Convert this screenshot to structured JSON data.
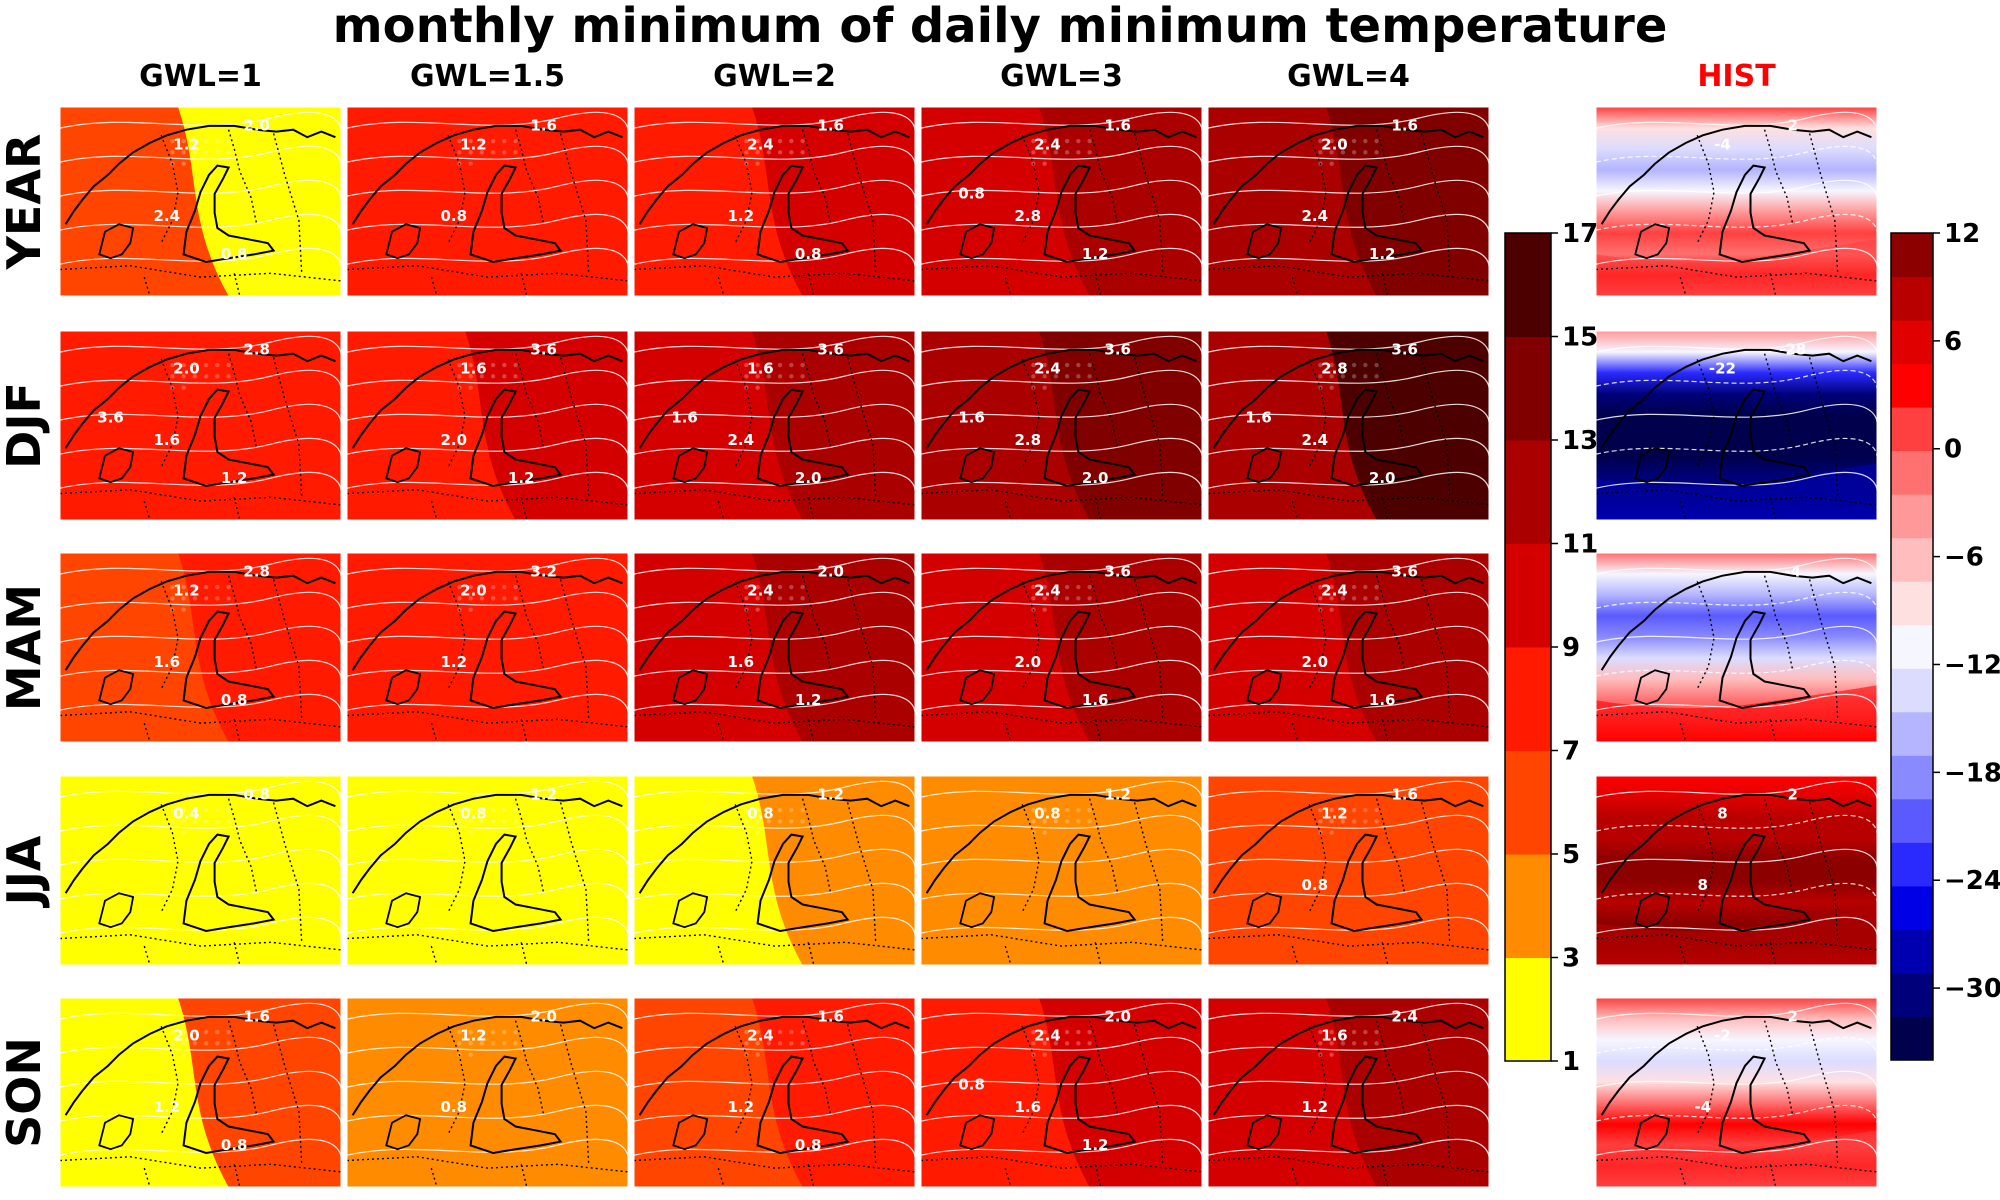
{
  "chart_data": {
    "type": "heatmap",
    "title": "monthly minimum of daily minimum temperature",
    "columns": [
      "GWL=1",
      "GWL=1.5",
      "GWL=2",
      "GWL=3",
      "GWL=4",
      "HIST"
    ],
    "rows": [
      "YEAR",
      "DJF",
      "MAM",
      "JJA",
      "SON"
    ],
    "hist_color": "#ff0000",
    "change_colorbar": {
      "levels": [
        1,
        3,
        5,
        7,
        9,
        11,
        13,
        15,
        17
      ],
      "tick_labels": [
        "1",
        "3",
        "5",
        "7",
        "9",
        "11",
        "13",
        "15",
        "17"
      ],
      "colors": [
        "#ffff00",
        "#ff8c00",
        "#ff4500",
        "#ff1a00",
        "#d40000",
        "#aa0000",
        "#800000",
        "#4d0000"
      ]
    },
    "hist_colorbar": {
      "range": [
        -34,
        12
      ],
      "tick_values": [
        12,
        6,
        0,
        -6,
        -12,
        -18,
        -24,
        -30
      ],
      "tick_labels": [
        "12",
        "6",
        "0",
        "−06",
        "−12",
        "−18",
        "−24",
        "−30"
      ],
      "tick_labels_display": [
        "12",
        "6",
        "0",
        "−6",
        "−12",
        "−18",
        "−24",
        "−30"
      ],
      "colors": [
        "#00004d",
        "#00007a",
        "#0000b0",
        "#0000e6",
        "#2a2aff",
        "#5a5aff",
        "#8a8aff",
        "#b4b4ff",
        "#dcdcff",
        "#f6f6ff",
        "#ffe0e0",
        "#ffbdbd",
        "#ff9999",
        "#ff7070",
        "#ff4040",
        "#ff0000",
        "#e00000",
        "#b80000",
        "#8c0000"
      ]
    },
    "panels": [
      [
        {
          "base": 2,
          "east": 0,
          "labels": [
            "2.0",
            "1.2",
            "2.4",
            "0.8"
          ]
        },
        {
          "base": 3,
          "east": 3,
          "labels": [
            "1.6",
            "1.2",
            "0.8"
          ]
        },
        {
          "base": 3,
          "east": 4,
          "labels": [
            "1.6",
            "2.4",
            "1.2",
            "0.8"
          ]
        },
        {
          "base": 4,
          "east": 5,
          "labels": [
            "1.6",
            "2.4",
            "2.8",
            "1.2",
            "0.8"
          ]
        },
        {
          "base": 5,
          "east": 6,
          "labels": [
            "1.6",
            "2.0",
            "2.4",
            "1.2"
          ]
        },
        {
          "hist": "year",
          "labels": [
            "2",
            "-4"
          ]
        }
      ],
      [
        {
          "base": 3,
          "east": 3,
          "labels": [
            "2.8",
            "2.0",
            "1.6",
            "1.2",
            "3.6"
          ]
        },
        {
          "base": 3,
          "east": 4,
          "labels": [
            "3.6",
            "1.6",
            "2.0",
            "1.2"
          ]
        },
        {
          "base": 4,
          "east": 5,
          "labels": [
            "3.6",
            "1.6",
            "2.4",
            "2.0",
            "1.6"
          ]
        },
        {
          "base": 5,
          "east": 6,
          "labels": [
            "3.6",
            "2.4",
            "2.8",
            "2.0",
            "1.6"
          ]
        },
        {
          "base": 5,
          "east": 7,
          "labels": [
            "3.6",
            "2.8",
            "2.4",
            "2.0",
            "1.6"
          ]
        },
        {
          "hist": "djf",
          "labels": [
            "-28",
            "-22"
          ]
        }
      ],
      [
        {
          "base": 2,
          "east": 3,
          "labels": [
            "2.8",
            "1.2",
            "1.6",
            "0.8"
          ]
        },
        {
          "base": 3,
          "east": 3,
          "labels": [
            "3.2",
            "2.0",
            "1.2"
          ]
        },
        {
          "base": 4,
          "east": 5,
          "labels": [
            "2.0",
            "2.4",
            "1.6",
            "1.2"
          ]
        },
        {
          "base": 4,
          "east": 5,
          "labels": [
            "3.6",
            "2.4",
            "2.0",
            "1.6"
          ]
        },
        {
          "base": 4,
          "east": 5,
          "labels": [
            "3.6",
            "2.4",
            "2.0",
            "1.6"
          ]
        },
        {
          "hist": "mam",
          "labels": [
            "-4"
          ]
        }
      ],
      [
        {
          "base": 0,
          "east": 0,
          "labels": [
            "0.8",
            "0.4"
          ]
        },
        {
          "base": 0,
          "east": 0,
          "labels": [
            "1.2",
            "0.8"
          ]
        },
        {
          "base": 0,
          "east": 1,
          "labels": [
            "1.2",
            "0.8"
          ]
        },
        {
          "base": 1,
          "east": 1,
          "labels": [
            "1.2",
            "0.8"
          ]
        },
        {
          "base": 2,
          "east": 2,
          "labels": [
            "1.6",
            "1.2",
            "0.8"
          ]
        },
        {
          "hist": "jja",
          "labels": [
            "2",
            "8",
            "8"
          ]
        }
      ],
      [
        {
          "base": 0,
          "east": 2,
          "labels": [
            "1.6",
            "2.0",
            "1.2",
            "0.8"
          ]
        },
        {
          "base": 1,
          "east": 1,
          "labels": [
            "2.0",
            "1.2",
            "0.8"
          ]
        },
        {
          "base": 2,
          "east": 3,
          "labels": [
            "1.6",
            "2.4",
            "1.2",
            "0.8"
          ]
        },
        {
          "base": 3,
          "east": 4,
          "labels": [
            "2.0",
            "2.4",
            "1.6",
            "1.2",
            "0.8"
          ]
        },
        {
          "base": 4,
          "east": 5,
          "labels": [
            "2.4",
            "1.6",
            "1.2"
          ]
        },
        {
          "hist": "son",
          "labels": [
            "2",
            "-2",
            "-4"
          ]
        }
      ]
    ]
  }
}
